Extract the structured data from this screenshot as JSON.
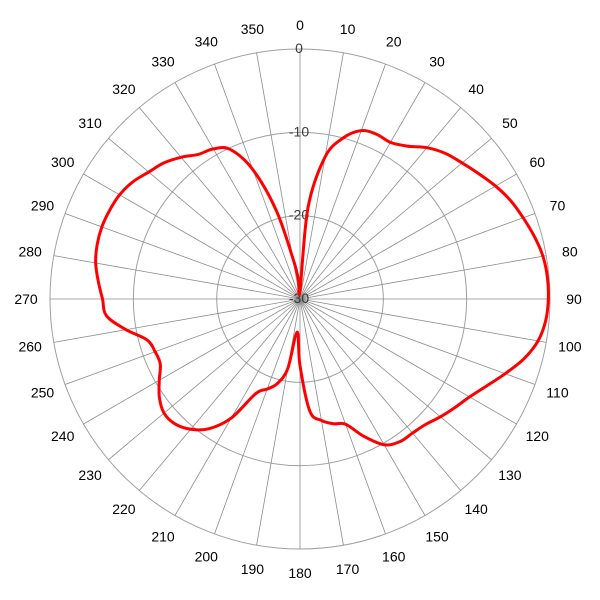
{
  "chart_data": {
    "type": "line",
    "subtype": "polar",
    "title": "",
    "angle_direction": "clockwise",
    "angle_zero": "top",
    "angle_ticks": [
      0,
      10,
      20,
      30,
      40,
      50,
      60,
      70,
      80,
      90,
      100,
      110,
      120,
      130,
      140,
      150,
      160,
      170,
      180,
      190,
      200,
      210,
      220,
      230,
      240,
      250,
      260,
      270,
      280,
      290,
      300,
      310,
      320,
      330,
      340,
      350
    ],
    "radial_ticks": [
      0,
      -10,
      -20,
      -30
    ],
    "rlim": [
      -30,
      0
    ],
    "grid": true,
    "series": [
      {
        "color": "#ff0000",
        "angles": [
          0,
          5,
          10,
          15,
          20,
          25,
          30,
          35,
          40,
          45,
          50,
          55,
          60,
          65,
          70,
          75,
          80,
          85,
          90,
          95,
          100,
          105,
          110,
          115,
          120,
          125,
          130,
          135,
          140,
          145,
          150,
          155,
          160,
          165,
          170,
          175,
          180,
          185,
          190,
          195,
          200,
          205,
          210,
          215,
          220,
          225,
          230,
          235,
          240,
          245,
          250,
          255,
          260,
          265,
          270,
          275,
          280,
          285,
          290,
          295,
          300,
          305,
          310,
          315,
          320,
          325,
          330,
          335,
          340,
          345,
          350,
          355
        ],
        "values": [
          -29,
          -19,
          -12.7,
          -10,
          -8.5,
          -8.2,
          -8.3,
          -7.6,
          -6.3,
          -5.3,
          -4.6,
          -3.8,
          -2.9,
          -2.1,
          -1.5,
          -0.9,
          -0.4,
          -0.2,
          -0.2,
          -0.4,
          -1.0,
          -2.2,
          -3.8,
          -5.3,
          -6.5,
          -7.3,
          -8.0,
          -8.7,
          -9.0,
          -9.1,
          -9.8,
          -11.8,
          -14.0,
          -14.5,
          -15.2,
          -16.5,
          -22,
          -26,
          -21.5,
          -19.5,
          -18.5,
          -17.5,
          -13.5,
          -11.0,
          -9.6,
          -8.8,
          -8.7,
          -9.4,
          -10.5,
          -11.5,
          -11.5,
          -11.0,
          -8.8,
          -6.7,
          -6.3,
          -5.7,
          -5.1,
          -4.8,
          -4.7,
          -4.8,
          -5.0,
          -5.5,
          -6.3,
          -6.9,
          -7.8,
          -8.8,
          -9.2,
          -10.2,
          -13.5,
          -19,
          -25,
          -27.5
        ]
      }
    ]
  }
}
